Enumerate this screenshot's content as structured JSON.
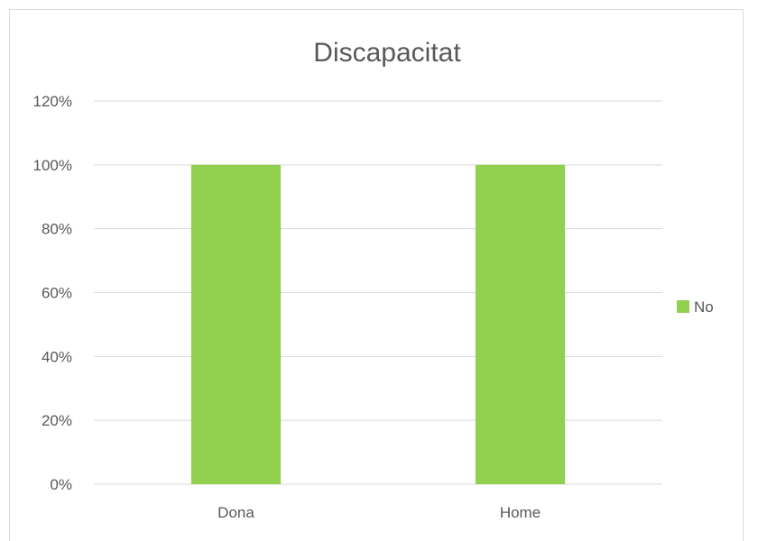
{
  "chart_data": {
    "type": "bar",
    "title": "Discapacitat",
    "categories": [
      "Dona",
      "Home"
    ],
    "series": [
      {
        "name": "No",
        "values": [
          100,
          100
        ],
        "color": "#92d050"
      }
    ],
    "y_ticks": [
      "0%",
      "20%",
      "40%",
      "60%",
      "80%",
      "100%",
      "120%"
    ],
    "ylim": [
      0,
      120
    ],
    "unit": "%",
    "grid": true,
    "legend": "right"
  }
}
